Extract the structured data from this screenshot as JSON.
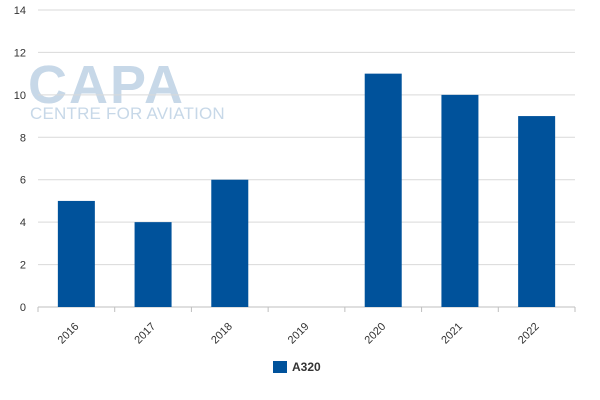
{
  "watermark": {
    "brand": "CAPA",
    "subtitle": "CENTRE FOR AVIATION"
  },
  "chart_data": {
    "type": "bar",
    "categories": [
      "2016",
      "2017",
      "2018",
      "2019",
      "2020",
      "2021",
      "2022"
    ],
    "series": [
      {
        "name": "A320",
        "values": [
          5,
          4,
          6,
          0,
          11,
          10,
          9
        ],
        "color": "#00529b"
      }
    ],
    "title": "",
    "xlabel": "",
    "ylabel": "",
    "ylim": [
      0,
      14
    ],
    "yticks": [
      0,
      2,
      4,
      6,
      8,
      10,
      12,
      14
    ],
    "grid": true,
    "legend": "bottom-center",
    "grid_color": "#d9d9d9",
    "axis_color": "#bfbfbf"
  }
}
